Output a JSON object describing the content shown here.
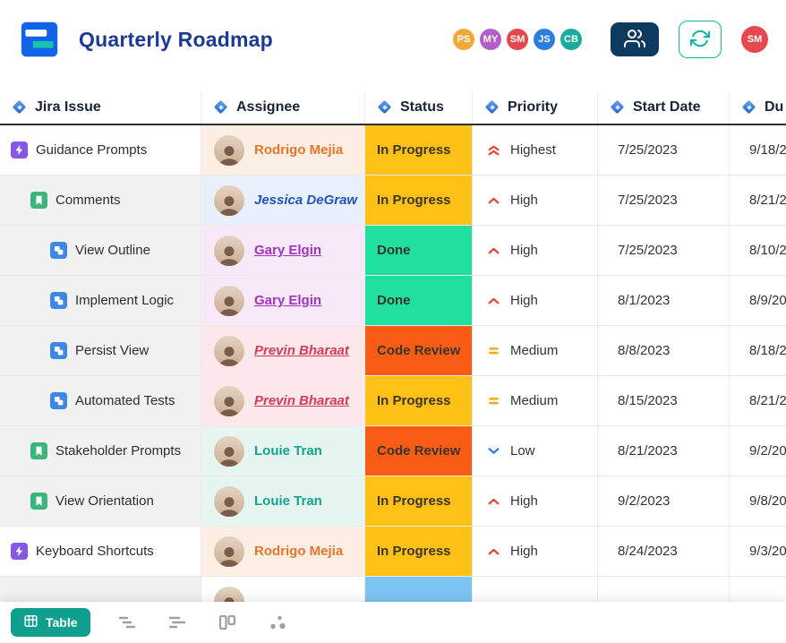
{
  "header": {
    "logo_icon": "app-logo",
    "title": "Quarterly Roadmap",
    "title_color": "#1B3A97",
    "collaborators": [
      {
        "initials": "PS",
        "color": "#F2A93B"
      },
      {
        "initials": "MY",
        "color": "#B35FC8"
      },
      {
        "initials": "SM",
        "color": "#E5484D"
      },
      {
        "initials": "JS",
        "color": "#2E7DE0"
      },
      {
        "initials": "CB",
        "color": "#18AC9C"
      }
    ],
    "team_button": {
      "icon": "people-icon",
      "color": "#0E3A5F"
    },
    "sync_button": {
      "icon": "refresh-icon",
      "color": "#10B5A2"
    },
    "user_avatar": {
      "initials": "SM",
      "color": "#E5484D"
    }
  },
  "table": {
    "columns": [
      {
        "label": "Jira Issue",
        "icon": "field-diamond-icon"
      },
      {
        "label": "Assignee",
        "icon": "field-diamond-icon"
      },
      {
        "label": "Status",
        "icon": "field-diamond-icon"
      },
      {
        "label": "Priority",
        "icon": "field-diamond-icon"
      },
      {
        "label": "Start Date",
        "icon": "field-diamond-icon"
      },
      {
        "label": "Du",
        "icon": "field-diamond-icon"
      }
    ],
    "rows": [
      {
        "issue": {
          "label": "Guidance Prompts",
          "type": "epic",
          "depth": 0
        },
        "person": {
          "name": "Rodrigo Mejia",
          "color": "#E8762C",
          "bg": "#FCEEE2",
          "style": ""
        },
        "status": {
          "label": "In Progress",
          "bg": "#FFC116"
        },
        "priority": {
          "label": "Highest",
          "icon": "highest"
        },
        "start_date": "7/25/2023",
        "due_date": "9/18/2"
      },
      {
        "issue": {
          "label": "Comments",
          "type": "story",
          "depth": 1
        },
        "person": {
          "name": "Jessica DeGraw",
          "color": "#2152C2",
          "bg": "#E7F0FB",
          "style": "italic"
        },
        "status": {
          "label": "In Progress",
          "bg": "#FFC116"
        },
        "priority": {
          "label": "High",
          "icon": "high"
        },
        "start_date": "7/25/2023",
        "due_date": "8/21/2"
      },
      {
        "issue": {
          "label": "View Outline",
          "type": "task",
          "depth": 2
        },
        "person": {
          "name": "Gary Elgin",
          "color": "#A133C2",
          "bg": "#F7E9F8",
          "style": "underline"
        },
        "status": {
          "label": "Done",
          "bg": "#20DF9F"
        },
        "priority": {
          "label": "High",
          "icon": "high"
        },
        "start_date": "7/25/2023",
        "due_date": "8/10/2"
      },
      {
        "issue": {
          "label": "Implement Logic",
          "type": "task",
          "depth": 2
        },
        "person": {
          "name": "Gary Elgin",
          "color": "#A133C2",
          "bg": "#F7E9F8",
          "style": "underline"
        },
        "status": {
          "label": "Done",
          "bg": "#20DF9F"
        },
        "priority": {
          "label": "High",
          "icon": "high"
        },
        "start_date": "8/1/2023",
        "due_date": "8/9/20"
      },
      {
        "issue": {
          "label": "Persist View",
          "type": "task",
          "depth": 2
        },
        "person": {
          "name": "Previn Bharaat",
          "color": "#D63B5A",
          "bg": "#FCE8EA",
          "style": "italic underline"
        },
        "status": {
          "label": "Code Review",
          "bg": "#F95D15"
        },
        "priority": {
          "label": "Medium",
          "icon": "medium"
        },
        "start_date": "8/8/2023",
        "due_date": "8/18/2"
      },
      {
        "issue": {
          "label": "Automated Tests",
          "type": "task",
          "depth": 2
        },
        "person": {
          "name": "Previn Bharaat",
          "color": "#D63B5A",
          "bg": "#FCE8EA",
          "style": "italic underline"
        },
        "status": {
          "label": "In Progress",
          "bg": "#FFC116"
        },
        "priority": {
          "label": "Medium",
          "icon": "medium"
        },
        "start_date": "8/15/2023",
        "due_date": "8/21/2"
      },
      {
        "issue": {
          "label": "Stakeholder Prompts",
          "type": "story",
          "depth": 1
        },
        "person": {
          "name": "Louie Tran",
          "color": "#14A38F",
          "bg": "#E4F6EF",
          "style": ""
        },
        "status": {
          "label": "Code Review",
          "bg": "#F95D15"
        },
        "priority": {
          "label": "Low",
          "icon": "low"
        },
        "start_date": "8/21/2023",
        "due_date": "9/2/20"
      },
      {
        "issue": {
          "label": "View Orientation",
          "type": "story",
          "depth": 1
        },
        "person": {
          "name": "Louie Tran",
          "color": "#14A38F",
          "bg": "#E4F6EF",
          "style": ""
        },
        "status": {
          "label": "In Progress",
          "bg": "#FFC116"
        },
        "priority": {
          "label": "High",
          "icon": "high"
        },
        "start_date": "9/2/2023",
        "due_date": "9/8/20"
      },
      {
        "issue": {
          "label": "Keyboard Shortcuts",
          "type": "epic",
          "depth": 0
        },
        "person": {
          "name": "Rodrigo Mejia",
          "color": "#E8762C",
          "bg": "#FCEEE2",
          "style": ""
        },
        "status": {
          "label": "In Progress",
          "bg": "#FFC116"
        },
        "priority": {
          "label": "High",
          "icon": "high"
        },
        "start_date": "8/24/2023",
        "due_date": "9/3/20"
      },
      {
        "issue": {
          "label": "",
          "type": "task",
          "depth": 2
        },
        "person": {
          "name": "",
          "color": "#333333",
          "bg": "#FFFFFF",
          "style": ""
        },
        "status": {
          "label": "",
          "bg": "#7CC5F2"
        },
        "priority": {
          "label": "",
          "icon": ""
        },
        "start_date": "",
        "due_date": ""
      }
    ]
  },
  "footer": {
    "table_button": {
      "label": "Table",
      "icon": "table-icon",
      "color": "#0F9F8F"
    },
    "view_icons": [
      "gantt-icon",
      "timeline-icon",
      "board-icon",
      "network-icon"
    ]
  }
}
